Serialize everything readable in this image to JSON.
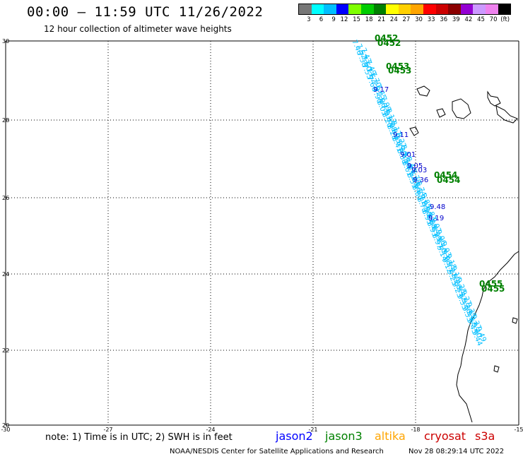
{
  "header": {
    "title": "00:00 – 11:59 UTC 11/26/2022",
    "subtitle": "12 hour collection of altimeter wave heights"
  },
  "legend": {
    "colors": [
      "#777777",
      "#00ffff",
      "#00bfff",
      "#0000ff",
      "#7fff00",
      "#00cc00",
      "#008000",
      "#ffff00",
      "#ffd000",
      "#ffa500",
      "#ff0000",
      "#cc0000",
      "#8b0000",
      "#9400d3",
      "#cc99ff",
      "#ee82ee",
      "#000000"
    ],
    "labels": [
      "3",
      "6",
      "9",
      "12",
      "15",
      "18",
      "21",
      "24",
      "27",
      "30",
      "33",
      "36",
      "39",
      "42",
      "45",
      "70",
      "(ft)"
    ]
  },
  "axes": {
    "x_ticks": [
      "-30",
      "-27",
      "-24",
      "-21",
      "-18",
      "-15"
    ],
    "y_ticks": [
      "30",
      "28",
      "26",
      "24",
      "22",
      "20"
    ]
  },
  "passes": {
    "labels": [
      "0452",
      "0452",
      "0453",
      "0453",
      "0454",
      "0454",
      "0455",
      "0455"
    ]
  },
  "wave_labels": {
    "cyan": [
      "7.46",
      "7.52",
      "7.43",
      "7.38",
      "7.60",
      "7.49",
      "7.55",
      "7.62",
      "7.70",
      "7.66",
      "7.81",
      "7.75",
      "7.90",
      "7.86",
      "7.99",
      "8.05",
      "7.93",
      "8.12",
      "8.20",
      "8.08",
      "8.17",
      "8.28",
      "8.35",
      "8.22",
      "8.41",
      "8.30",
      "8.47",
      "8.38",
      "8.56",
      "8.44",
      "8.61",
      "8.52",
      "8.70",
      "8.59",
      "8.66",
      "8.74",
      "8.80",
      "8.71",
      "8.85",
      "8.78",
      "8.90",
      "8.83",
      "8.95",
      "8.88",
      "9.02",
      "8.93",
      "8.99",
      "9.06",
      "8.97",
      "9.10",
      "9.03",
      "9.14",
      "9.08",
      "9.18",
      "9.12",
      "9.21",
      "9.16",
      "9.25",
      "9.20",
      "9.28",
      "9.23",
      "9.32",
      "9.27",
      "9.35",
      "9.30",
      "9.39",
      "9.33",
      "9.42",
      "9.37",
      "9.45",
      "9.40",
      "9.49",
      "9.44"
    ],
    "blue": [
      "9.17",
      "9.11",
      "9.01",
      "9.05",
      "9.03",
      "9.36",
      "9.48",
      "9.19"
    ]
  },
  "footer": {
    "note": "note: 1) Time is in UTC; 2) SWH is in feet",
    "satellites": [
      {
        "name": "jason2",
        "color": "#0000ff"
      },
      {
        "name": "jason3",
        "color": "#008000"
      },
      {
        "name": "altika",
        "color": "#ffa500"
      },
      {
        "name": "cryosat",
        "color": "#cc0000"
      },
      {
        "name": "s3a",
        "color": "#cc0000"
      }
    ],
    "credit": "NOAA/NESDIS Center for Satellite Applications and Research",
    "timestamp": "Nov 28 08:29:14 UTC 2022"
  }
}
